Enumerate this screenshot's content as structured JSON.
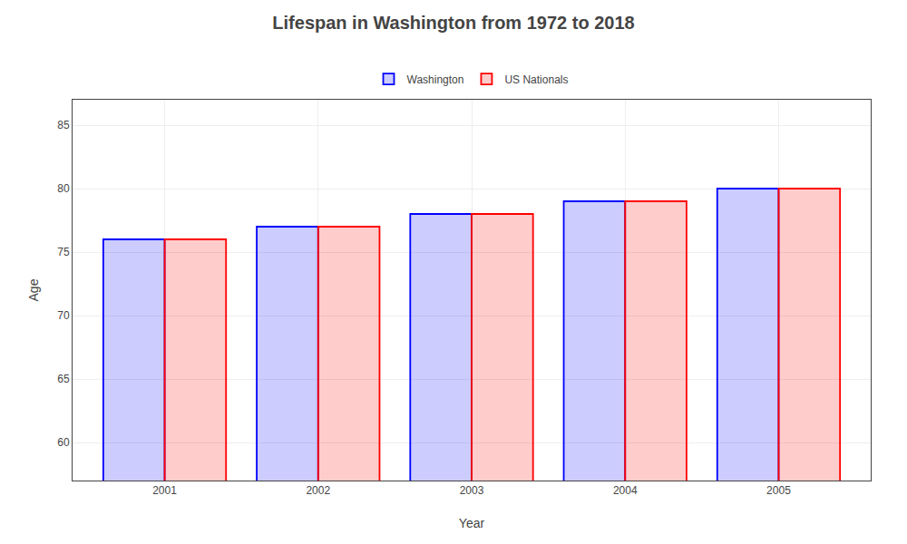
{
  "chart_data": {
    "type": "bar",
    "title": "Lifespan in Washington from 1972 to 2018",
    "x_label": "Year",
    "y_label": "Age",
    "categories": [
      "2001",
      "2002",
      "2003",
      "2004",
      "2005"
    ],
    "series": [
      {
        "name": "Washington",
        "color": "#0000ff",
        "values": [
          76,
          77,
          78,
          79,
          80
        ]
      },
      {
        "name": "US Nationals",
        "color": "#ff0000",
        "values": [
          76,
          77,
          78,
          79,
          80
        ]
      }
    ],
    "ylim": [
      57,
      87
    ],
    "yticks": [
      60,
      65,
      70,
      75,
      80,
      85
    ],
    "grid": true,
    "legend": "top"
  }
}
